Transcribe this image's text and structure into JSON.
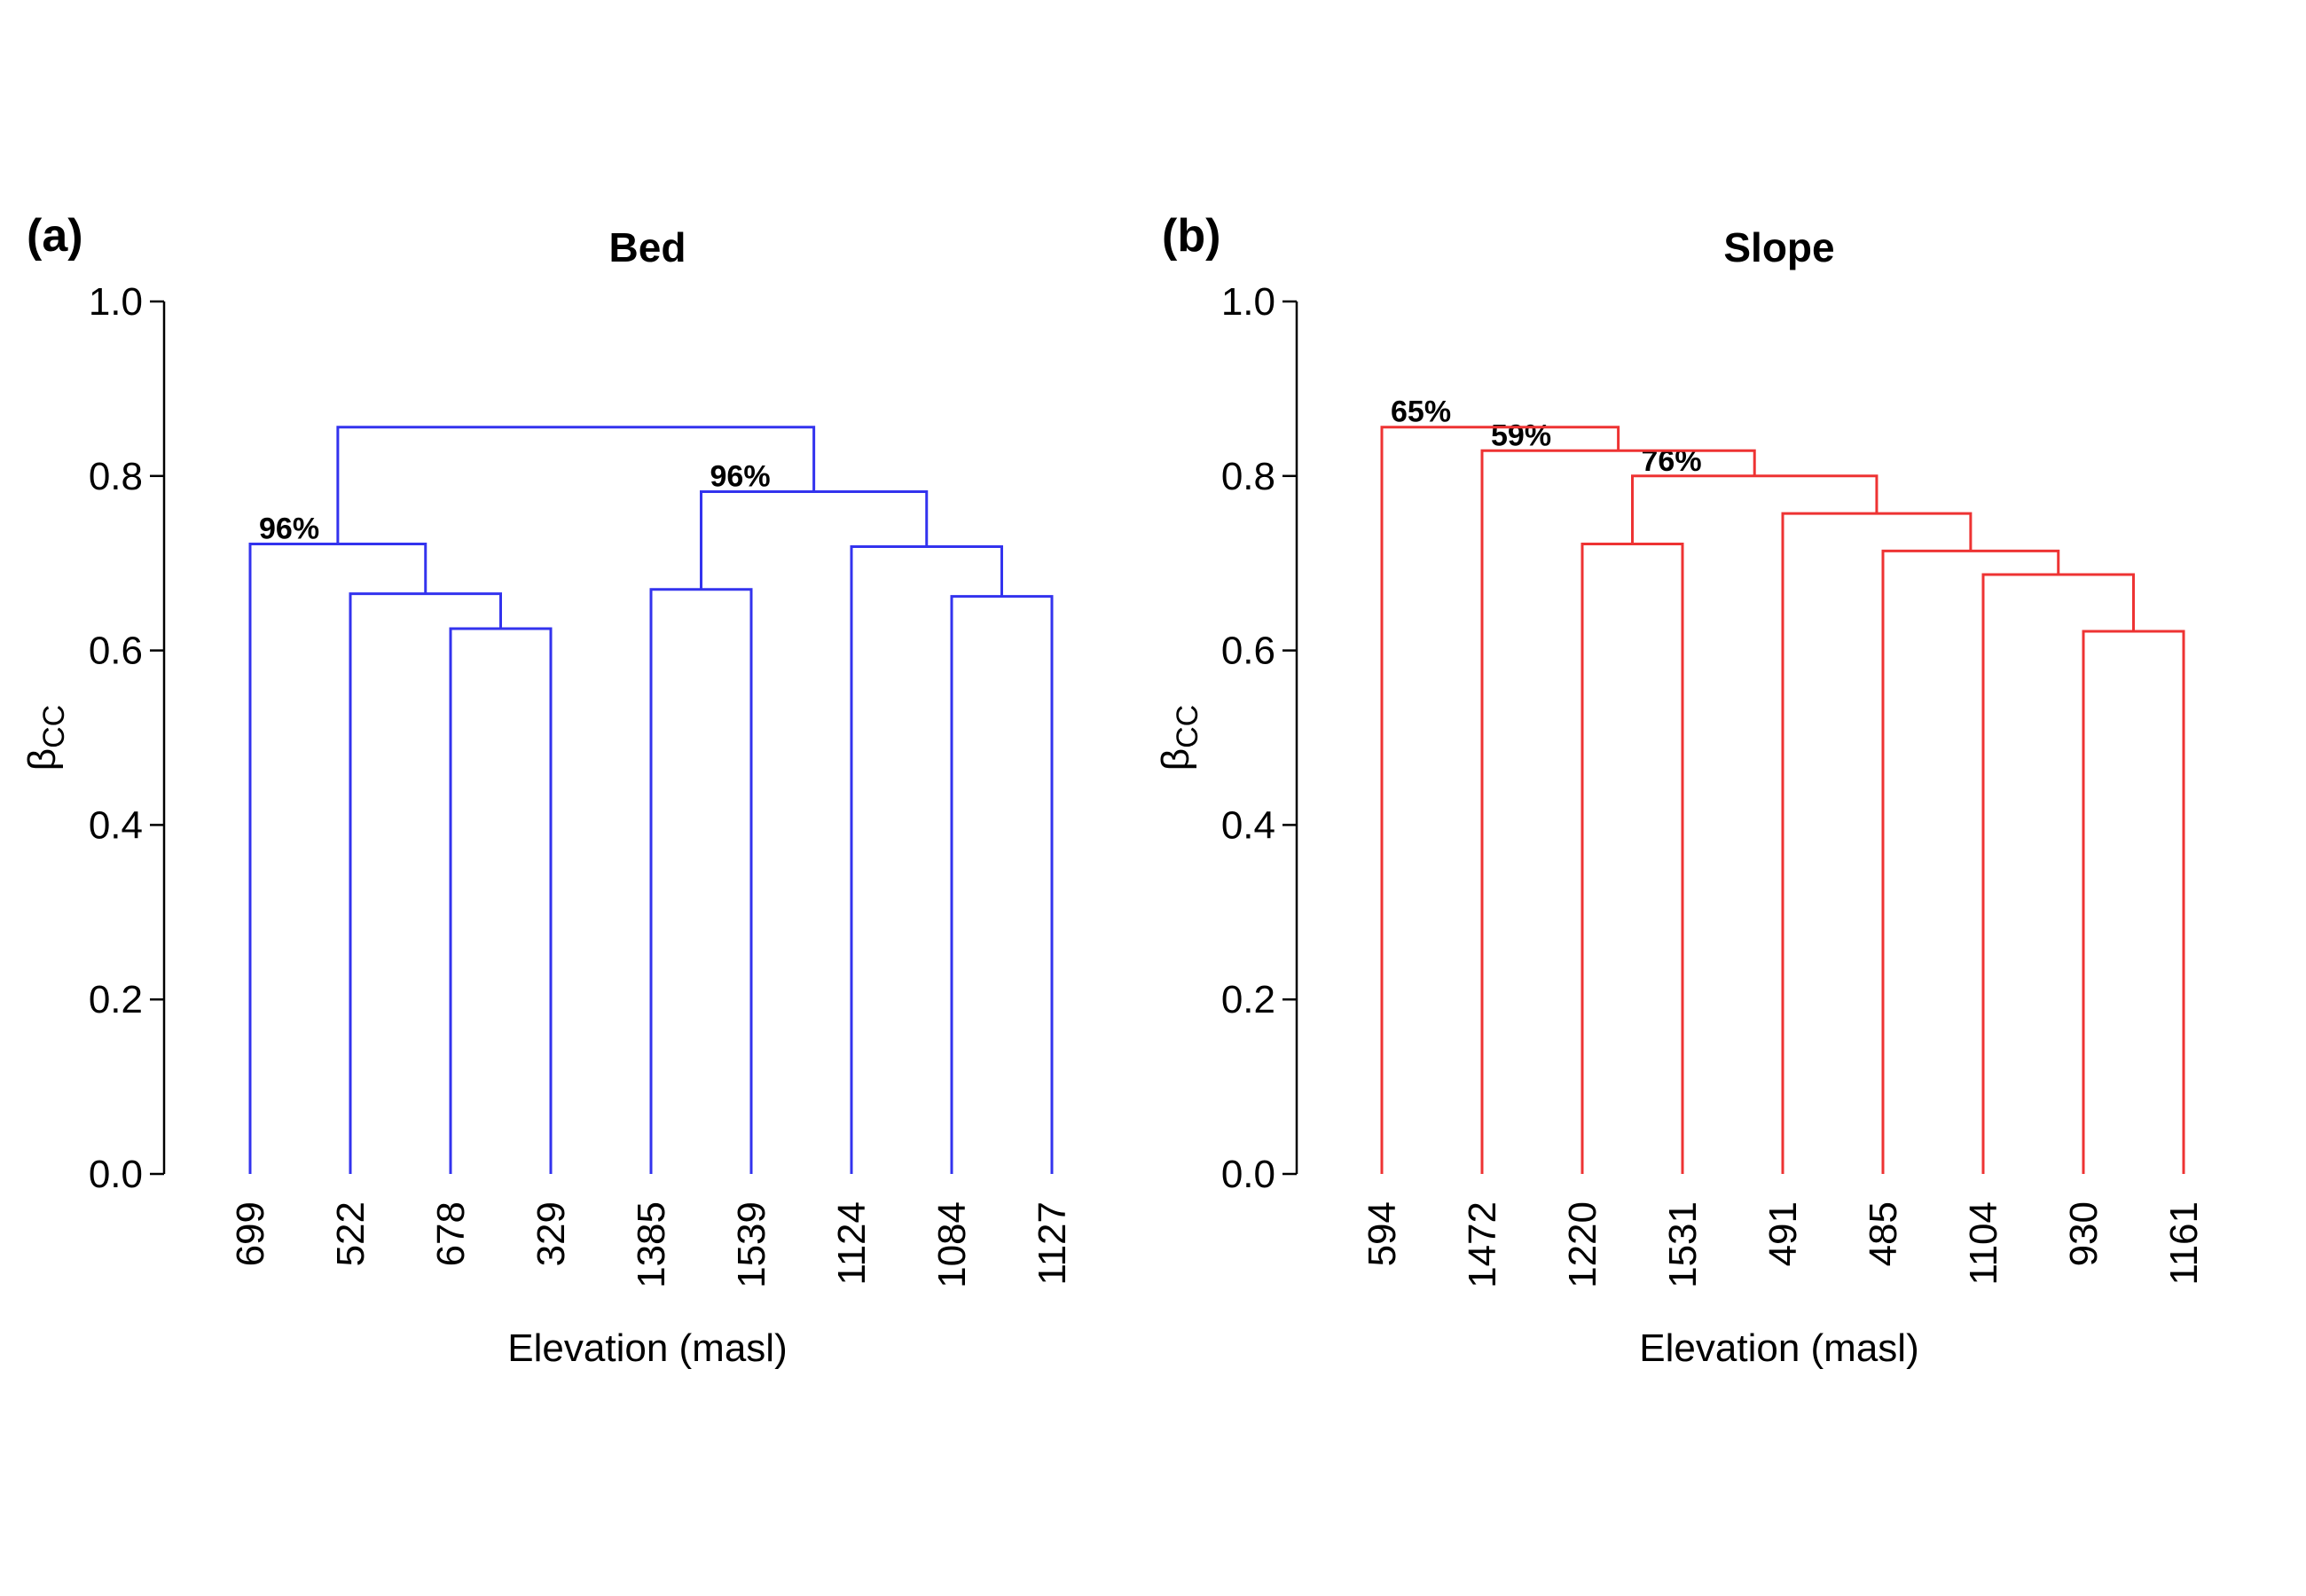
{
  "chart_data": [
    {
      "type": "dendrogram",
      "panel_label": "(a)",
      "title": "Bed",
      "xlabel": "Elevation (masl)",
      "ylabel": "βCC",
      "ylim": [
        0,
        1
      ],
      "yticks": [
        "0.0",
        "0.2",
        "0.4",
        "0.6",
        "0.8",
        "1.0"
      ],
      "color": "#3333ee",
      "leaves": [
        "699",
        "522",
        "678",
        "329",
        "1385",
        "1539",
        "1124",
        "1084",
        "1127"
      ],
      "merges": [
        {
          "id": "a1",
          "left": "678",
          "right": "329",
          "height": 0.625
        },
        {
          "id": "a2",
          "left": "522",
          "right": "a1",
          "height": 0.665
        },
        {
          "id": "a3",
          "left": "699",
          "right": "a2",
          "height": 0.722,
          "support": "96%"
        },
        {
          "id": "a4",
          "left": "1385",
          "right": "1539",
          "height": 0.67
        },
        {
          "id": "a5",
          "left": "1084",
          "right": "1127",
          "height": 0.662
        },
        {
          "id": "a6",
          "left": "1124",
          "right": "a5",
          "height": 0.719
        },
        {
          "id": "a7",
          "left": "a4",
          "right": "a6",
          "height": 0.782,
          "support": "96%"
        },
        {
          "id": "a8",
          "left": "a3",
          "right": "a7",
          "height": 0.856
        }
      ]
    },
    {
      "type": "dendrogram",
      "panel_label": "(b)",
      "title": "Slope",
      "xlabel": "Elevation (masl)",
      "ylabel": "βCC",
      "ylim": [
        0,
        1
      ],
      "yticks": [
        "0.0",
        "0.2",
        "0.4",
        "0.6",
        "0.8",
        "1.0"
      ],
      "color": "#ee3333",
      "leaves": [
        "594",
        "1472",
        "1220",
        "1531",
        "491",
        "485",
        "1104",
        "930",
        "1161"
      ],
      "merges": [
        {
          "id": "b1",
          "left": "930",
          "right": "1161",
          "height": 0.622
        },
        {
          "id": "b2",
          "left": "1104",
          "right": "b1",
          "height": 0.687
        },
        {
          "id": "b3",
          "left": "485",
          "right": "b2",
          "height": 0.714
        },
        {
          "id": "b4",
          "left": "491",
          "right": "b3",
          "height": 0.757
        },
        {
          "id": "b5",
          "left": "1220",
          "right": "1531",
          "height": 0.722
        },
        {
          "id": "b6",
          "left": "b5",
          "right": "b4",
          "height": 0.8,
          "support": "76%"
        },
        {
          "id": "b7",
          "left": "1472",
          "right": "b6",
          "height": 0.829,
          "support": "59%"
        },
        {
          "id": "b8",
          "left": "594",
          "right": "b7",
          "height": 0.856,
          "support": "65%"
        }
      ]
    }
  ]
}
